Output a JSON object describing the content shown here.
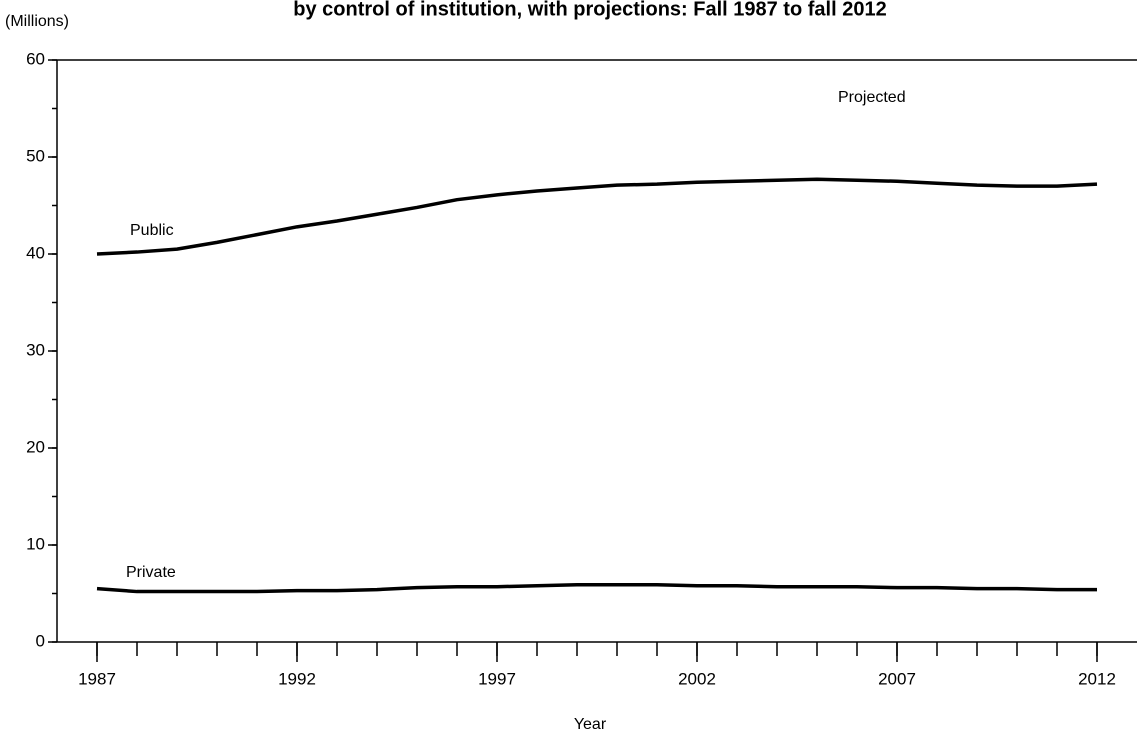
{
  "chart_data": {
    "type": "line",
    "title": "by control of institution, with projections: Fall 1987 to fall 2012",
    "y_axis_label": "(Millions)",
    "x_axis_label": "Year",
    "annotations": [
      "Projected",
      "Public",
      "Private"
    ],
    "x": [
      1987,
      1988,
      1989,
      1990,
      1991,
      1992,
      1993,
      1994,
      1995,
      1996,
      1997,
      1998,
      1999,
      2000,
      2001,
      2002,
      2003,
      2004,
      2005,
      2006,
      2007,
      2008,
      2009,
      2010,
      2011,
      2012
    ],
    "series": [
      {
        "name": "Public",
        "color": "#000000",
        "values": [
          40.0,
          40.2,
          40.5,
          41.2,
          42.0,
          42.8,
          43.4,
          44.1,
          44.8,
          45.6,
          46.1,
          46.5,
          46.8,
          47.1,
          47.2,
          47.4,
          47.5,
          47.6,
          47.7,
          47.6,
          47.5,
          47.3,
          47.1,
          47.0,
          47.0,
          47.2
        ]
      },
      {
        "name": "Private",
        "color": "#000000",
        "values": [
          5.5,
          5.2,
          5.2,
          5.2,
          5.2,
          5.3,
          5.3,
          5.4,
          5.6,
          5.7,
          5.7,
          5.8,
          5.9,
          5.9,
          5.9,
          5.8,
          5.8,
          5.7,
          5.7,
          5.7,
          5.6,
          5.6,
          5.5,
          5.5,
          5.4,
          5.4
        ]
      }
    ],
    "xlim": [
      1986,
      2013
    ],
    "xticks": [
      1987,
      1992,
      1997,
      2002,
      2007,
      2012
    ],
    "xminor_step": 1,
    "ylim": [
      0,
      60
    ],
    "yticks": [
      0,
      10,
      20,
      30,
      40,
      50,
      60
    ],
    "yminor_step": 5,
    "grid": false
  }
}
